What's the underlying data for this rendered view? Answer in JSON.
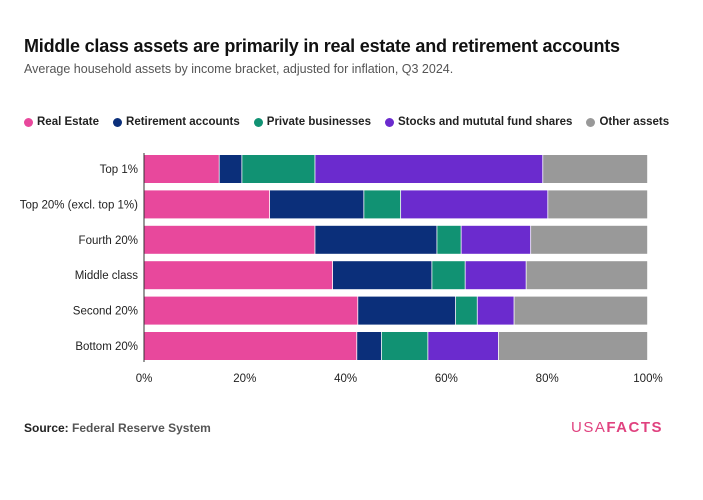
{
  "chart_data": {
    "type": "bar",
    "orientation": "horizontal",
    "stacked": true,
    "title": "Middle class assets are primarily in real estate and retirement accounts",
    "subtitle": "Average household assets by income bracket, adjusted for inflation, Q3 2024.",
    "categories": [
      "Top 1%",
      "Top 20% (excl. top 1%)",
      "Fourth 20%",
      "Middle class",
      "Second 20%",
      "Bottom 20%"
    ],
    "series": [
      {
        "name": "Real Estate",
        "color": "#e8489c",
        "values": [
          15,
          25,
          34,
          37.5,
          42.5,
          42.3
        ]
      },
      {
        "name": "Retirement accounts",
        "color": "#0b2f7a",
        "values": [
          4.5,
          18.7,
          24.2,
          19.7,
          19.4,
          4.9
        ]
      },
      {
        "name": "Private businesses",
        "color": "#119273",
        "values": [
          14.5,
          7.3,
          4.8,
          6.6,
          4.3,
          9.2
        ]
      },
      {
        "name": "Stocks and mututal fund shares",
        "color": "#6b2bce",
        "values": [
          45.2,
          29.2,
          13.8,
          12.1,
          7.3,
          14.0
        ]
      },
      {
        "name": "Other assets",
        "color": "#999999",
        "values": [
          20.8,
          19.8,
          23.2,
          24.1,
          26.5,
          29.6
        ]
      }
    ],
    "xlim": [
      0,
      100
    ],
    "xticks": [
      "0%",
      "20%",
      "40%",
      "60%",
      "80%",
      "100%"
    ],
    "xtick_values": [
      0,
      20,
      40,
      60,
      80,
      100
    ],
    "legend_position": "top-left",
    "grid": false
  },
  "source": {
    "label": "Source:",
    "value": "Federal Reserve System"
  },
  "brand": {
    "part1": "USA",
    "part2": "FACTS"
  }
}
